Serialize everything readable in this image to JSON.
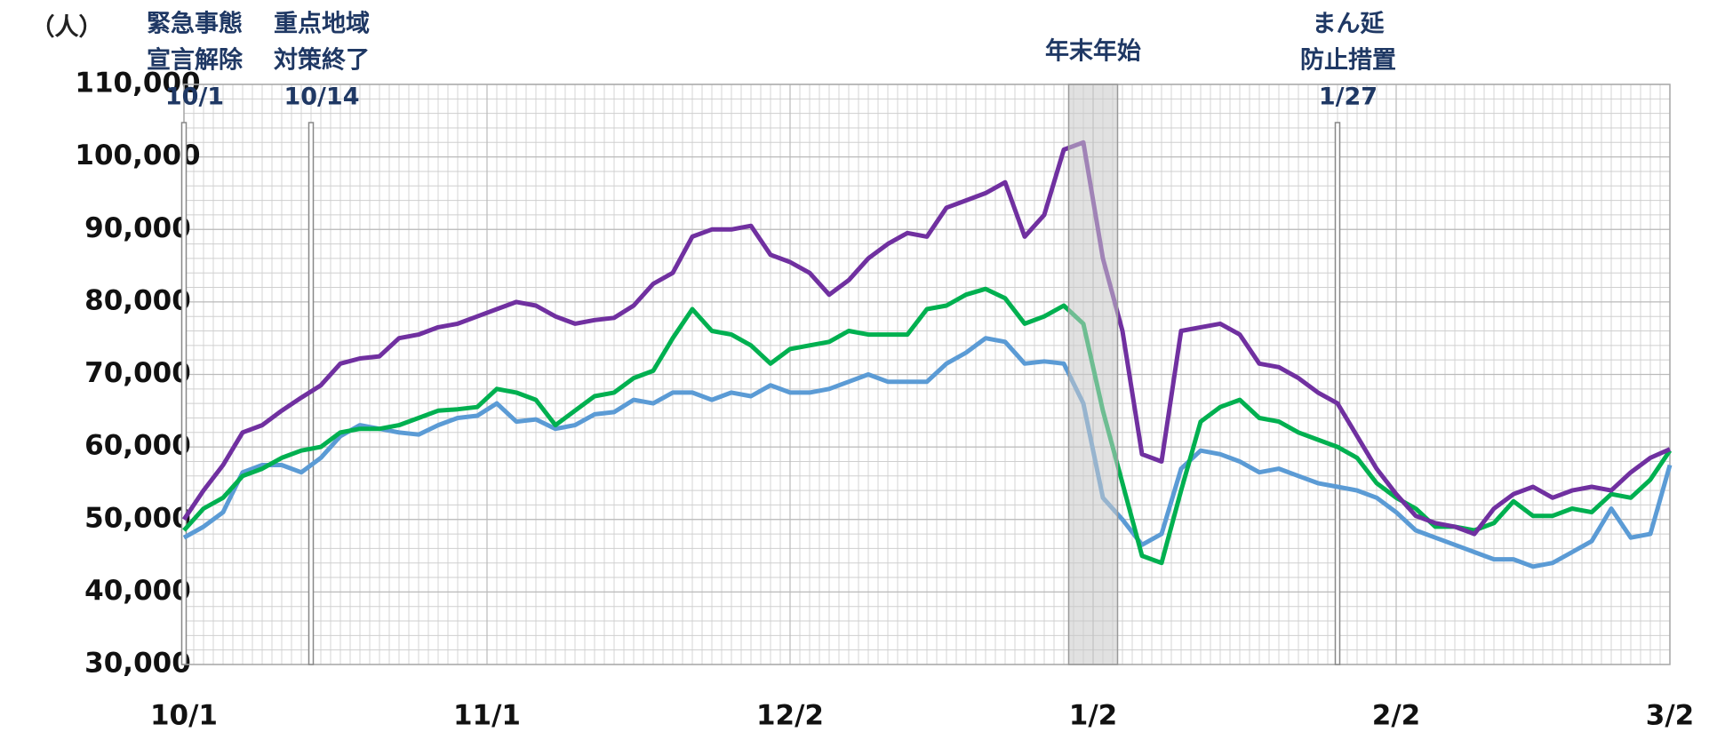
{
  "chart_data": {
    "type": "line",
    "ylabel": "（人）",
    "x": [
      0,
      2,
      4,
      6,
      8,
      10,
      12,
      14,
      16,
      18,
      20,
      22,
      24,
      26,
      28,
      30,
      32,
      34,
      36,
      38,
      40,
      42,
      44,
      46,
      48,
      50,
      52,
      54,
      56,
      58,
      60,
      62,
      64,
      66,
      68,
      70,
      72,
      74,
      76,
      78,
      80,
      82,
      84,
      86,
      88,
      90,
      92,
      94,
      96,
      98,
      100,
      102,
      104,
      106,
      108,
      110,
      112,
      114,
      116,
      118,
      120,
      122,
      124,
      126,
      128,
      130,
      132,
      134,
      136,
      138,
      140,
      142,
      144,
      146,
      148,
      150,
      152
    ],
    "xlim": [
      0,
      152
    ],
    "xticks": [
      {
        "value": 0,
        "label": "10/1"
      },
      {
        "value": 31,
        "label": "11/1"
      },
      {
        "value": 62,
        "label": "12/2"
      },
      {
        "value": 93,
        "label": "1/2"
      },
      {
        "value": 124,
        "label": "2/2"
      },
      {
        "value": 152,
        "label": "3/2"
      }
    ],
    "ylim": [
      30000,
      110000
    ],
    "yticks": [
      {
        "value": 30000,
        "label": "30,000"
      },
      {
        "value": 40000,
        "label": "40,000"
      },
      {
        "value": 50000,
        "label": "50,000"
      },
      {
        "value": 60000,
        "label": "60,000"
      },
      {
        "value": 70000,
        "label": "70,000"
      },
      {
        "value": 80000,
        "label": "80,000"
      },
      {
        "value": 90000,
        "label": "90,000"
      },
      {
        "value": 100000,
        "label": "100,000"
      },
      {
        "value": 110000,
        "label": "110,000"
      }
    ],
    "grid": true,
    "minor_grid": {
      "x": 1,
      "y": 2000
    },
    "series": [
      {
        "color": "#7030a0",
        "values": [
          50000,
          54000,
          57500,
          62000,
          63000,
          65000,
          66800,
          68500,
          71500,
          72200,
          72500,
          75000,
          75500,
          76500,
          77000,
          78000,
          79000,
          80000,
          79500,
          78000,
          77000,
          77500,
          77800,
          79500,
          82500,
          84000,
          89000,
          90000,
          90000,
          90500,
          86500,
          85500,
          84000,
          81000,
          83000,
          86000,
          88000,
          89500,
          89000,
          93000,
          94000,
          95000,
          96500,
          89000,
          92000,
          101000,
          102000,
          86000,
          76000,
          59000,
          58000,
          76000,
          76500,
          77000,
          75500,
          71500,
          71000,
          69500,
          67500,
          66000,
          61500,
          57000,
          53500,
          50500,
          49500,
          49000,
          48000,
          51500,
          53500,
          54500,
          53000,
          54000,
          54500,
          54000,
          56500,
          58500,
          59700
        ]
      },
      {
        "color": "#00b050",
        "values": [
          48500,
          51500,
          53000,
          56000,
          57000,
          58500,
          59500,
          60000,
          62000,
          62500,
          62500,
          63000,
          64000,
          65000,
          65200,
          65500,
          68000,
          67500,
          66500,
          63000,
          65000,
          67000,
          67500,
          69500,
          70500,
          75000,
          79000,
          76000,
          75500,
          74000,
          71500,
          73500,
          74000,
          74500,
          76000,
          75500,
          75500,
          75500,
          79000,
          79500,
          81000,
          81800,
          80500,
          77000,
          78000,
          79500,
          77000,
          65000,
          55000,
          45000,
          44000,
          54000,
          63500,
          65500,
          66500,
          64000,
          63500,
          62000,
          61000,
          60000,
          58500,
          55000,
          53000,
          51500,
          49000,
          49000,
          48500,
          49500,
          52500,
          50500,
          50500,
          51500,
          51000,
          53500,
          53000,
          55500,
          59500
        ]
      },
      {
        "color": "#5b9bd5",
        "values": [
          47500,
          49000,
          51000,
          56500,
          57500,
          57500,
          56500,
          58500,
          61500,
          63000,
          62500,
          62000,
          61700,
          63000,
          64000,
          64300,
          66000,
          63500,
          63800,
          62500,
          63000,
          64500,
          64800,
          66500,
          66000,
          67500,
          67500,
          66500,
          67500,
          67000,
          68500,
          67500,
          67500,
          68000,
          69000,
          70000,
          69000,
          69000,
          69000,
          71500,
          73000,
          75000,
          74500,
          71500,
          71800,
          71500,
          66000,
          53000,
          50000,
          46500,
          48000,
          57000,
          59500,
          59000,
          58000,
          56500,
          57000,
          56000,
          55000,
          54500,
          54000,
          53000,
          51000,
          48500,
          47500,
          46500,
          45500,
          44500,
          44500,
          43500,
          44000,
          45500,
          47000,
          51500,
          47500,
          48000,
          57500
        ]
      }
    ],
    "annotations": [
      {
        "x": 0,
        "text": [
          "緊急事態",
          "宣言解除",
          "10/1"
        ]
      },
      {
        "x": 13,
        "text": [
          "重点地域",
          "対策終了",
          "10/14"
        ]
      },
      {
        "x": 118,
        "text": [
          "まん延",
          "防止措置",
          "1/27"
        ]
      }
    ],
    "shade": {
      "x": [
        90.5,
        95.5
      ],
      "label": "年末年始"
    }
  }
}
